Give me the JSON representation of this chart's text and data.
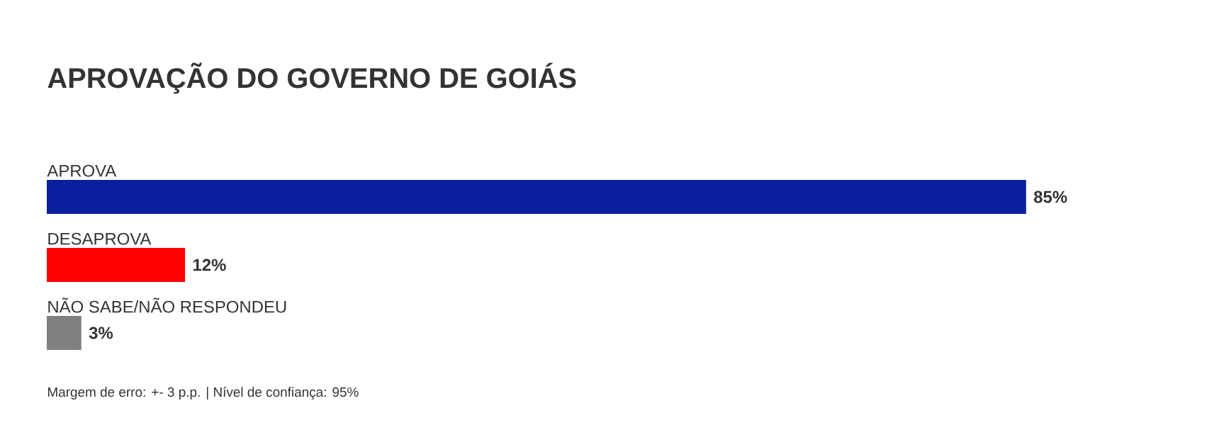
{
  "chart_data": {
    "type": "bar",
    "orientation": "horizontal",
    "title": "APROVAÇÃO DO GOVERNO DE GOIÁS",
    "categories": [
      "APROVA",
      "DESAPROVA",
      "NÃO SABE/NÃO RESPONDEU"
    ],
    "values": [
      85,
      12,
      3
    ],
    "colors": [
      "#0a1f9e",
      "#ff0000",
      "#808080"
    ],
    "value_labels": [
      "85%",
      "12%",
      "3%"
    ],
    "annotations": [
      "Margem de erro: +- 3 p.p. | Nível de confiança: 95%"
    ]
  }
}
